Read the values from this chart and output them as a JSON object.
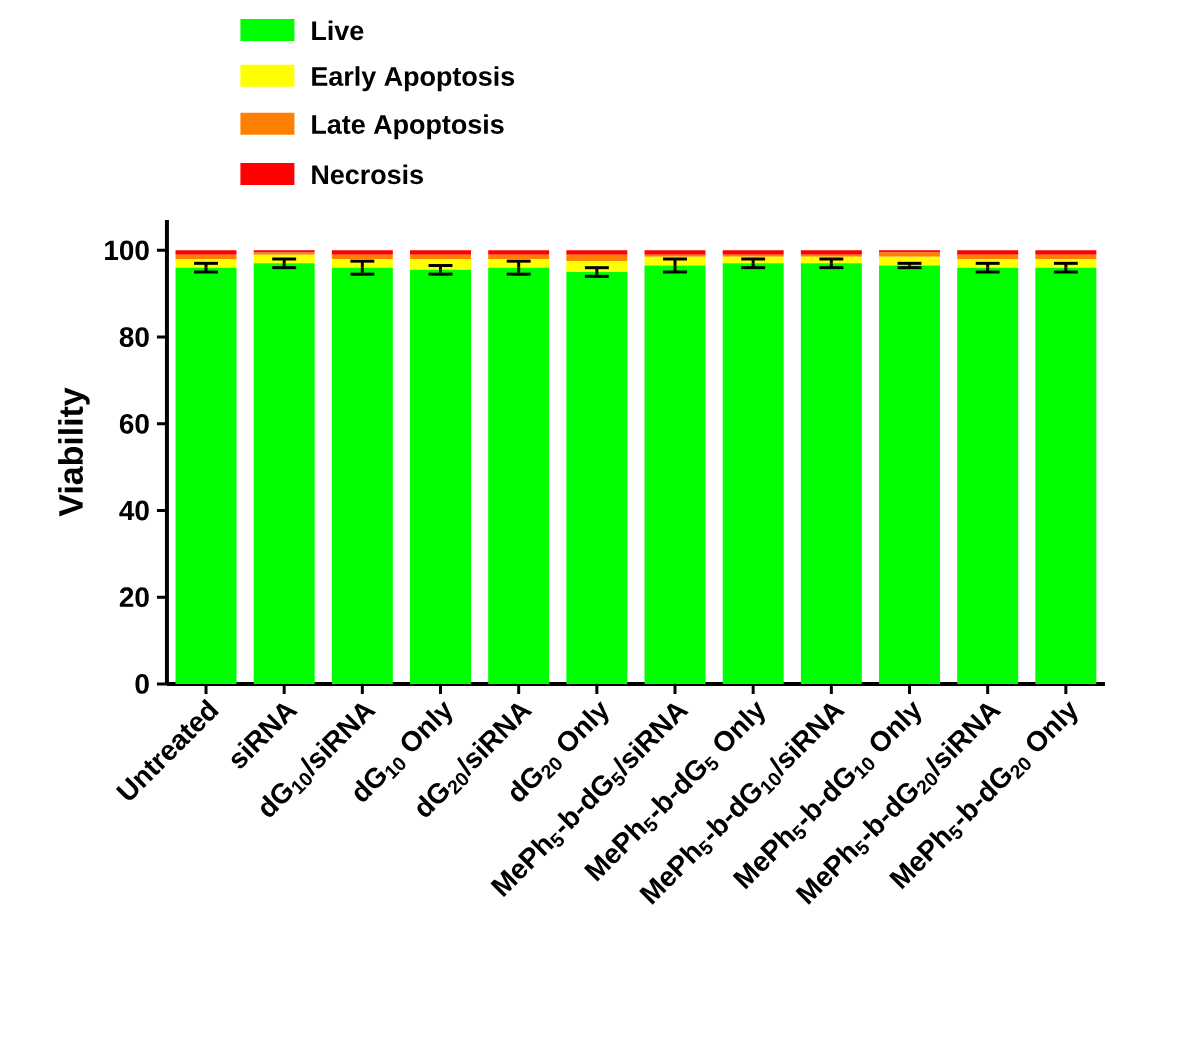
{
  "chart_data": {
    "type": "bar",
    "stacked": true,
    "ylabel": "Viability",
    "categories": [
      "Untreated",
      "siRNA",
      "dG$_{10}$/siRNA",
      "dG$_{10}$ Only",
      "dG$_{20}$/siRNA",
      "dG$_{20}$ Only",
      "MePh$_{5}$-b-dG$_{5}$/siRNA",
      "MePh$_{5}$-b-dG$_{5}$ Only",
      "MePh$_{5}$-b-dG$_{10}$/siRNA",
      "MePh$_{5}$-b-dG$_{10}$ Only",
      "MePh$_{5}$-b-dG$_{20}$/siRNA",
      "MePh$_{5}$-b-dG$_{20}$ Only"
    ],
    "series": [
      {
        "name": "Live",
        "color": "#00ff00",
        "values": [
          96,
          97,
          96,
          95.5,
          96,
          95,
          96.5,
          97,
          97,
          96.5,
          96,
          96
        ],
        "errors": [
          1,
          1,
          1.5,
          1,
          1.5,
          1,
          1.5,
          1,
          1,
          0.5,
          1,
          1
        ]
      },
      {
        "name": "Early Apoptosis",
        "color": "#ffff00",
        "values": [
          2,
          2,
          2,
          2.5,
          2,
          2.5,
          2,
          1.5,
          1.5,
          2,
          2,
          2
        ]
      },
      {
        "name": "Late Apoptosis",
        "color": "#ff8000",
        "values": [
          1,
          0.5,
          1,
          1,
          1,
          1.5,
          0.5,
          0.5,
          0.5,
          1,
          1,
          1
        ]
      },
      {
        "name": "Necrosis",
        "color": "#ff0000",
        "values": [
          1,
          0.5,
          1,
          1,
          1,
          1,
          1,
          1,
          1,
          0.5,
          1,
          1
        ]
      }
    ],
    "ylim": [
      0,
      107
    ],
    "yticks": [
      0,
      20,
      40,
      60,
      80,
      100
    ],
    "grid": false,
    "legend": "top left"
  }
}
